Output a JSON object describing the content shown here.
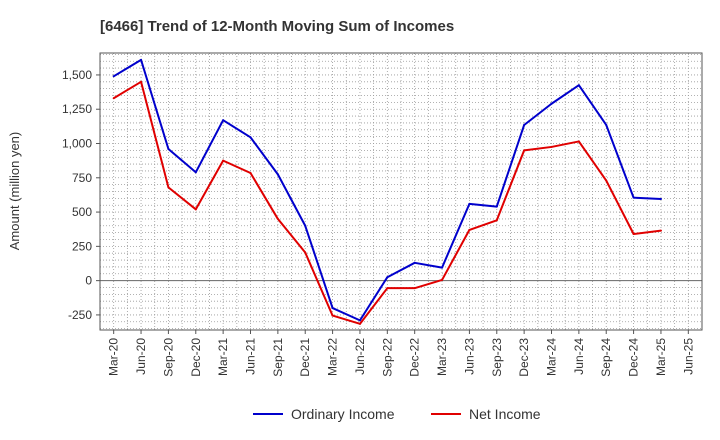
{
  "chart_data": {
    "type": "line",
    "title": "[6466]  Trend of 12-Month Moving Sum of Incomes",
    "xlabel": "",
    "ylabel": "Amount (million yen)",
    "ylim": [
      -360,
      1660
    ],
    "yticks": [
      -250,
      0,
      250,
      500,
      750,
      1000,
      1250,
      1500
    ],
    "ytick_labels": [
      "-250",
      "0",
      "250",
      "500",
      "750",
      "1,000",
      "1,250",
      "1,500"
    ],
    "categories": [
      "Mar-20",
      "Jun-20",
      "Sep-20",
      "Dec-20",
      "Mar-21",
      "Jun-21",
      "Sep-21",
      "Dec-21",
      "Mar-22",
      "Jun-22",
      "Sep-22",
      "Dec-22",
      "Mar-23",
      "Jun-23",
      "Sep-23",
      "Dec-23",
      "Mar-24",
      "Jun-24",
      "Sep-24",
      "Dec-24",
      "Mar-25",
      "Jun-25"
    ],
    "series": [
      {
        "name": "Ordinary Income",
        "color": "#0000cc",
        "values": [
          1490,
          1610,
          960,
          790,
          1170,
          1045,
          775,
          400,
          -200,
          -290,
          25,
          130,
          95,
          560,
          540,
          1135,
          1290,
          1425,
          1135,
          605,
          595,
          null
        ]
      },
      {
        "name": "Net Income",
        "color": "#e00000",
        "values": [
          1330,
          1450,
          680,
          520,
          875,
          785,
          450,
          205,
          -255,
          -315,
          -55,
          -55,
          5,
          370,
          440,
          950,
          975,
          1015,
          730,
          340,
          365,
          null
        ]
      }
    ],
    "grid": true,
    "legend_position": "bottom-center"
  }
}
